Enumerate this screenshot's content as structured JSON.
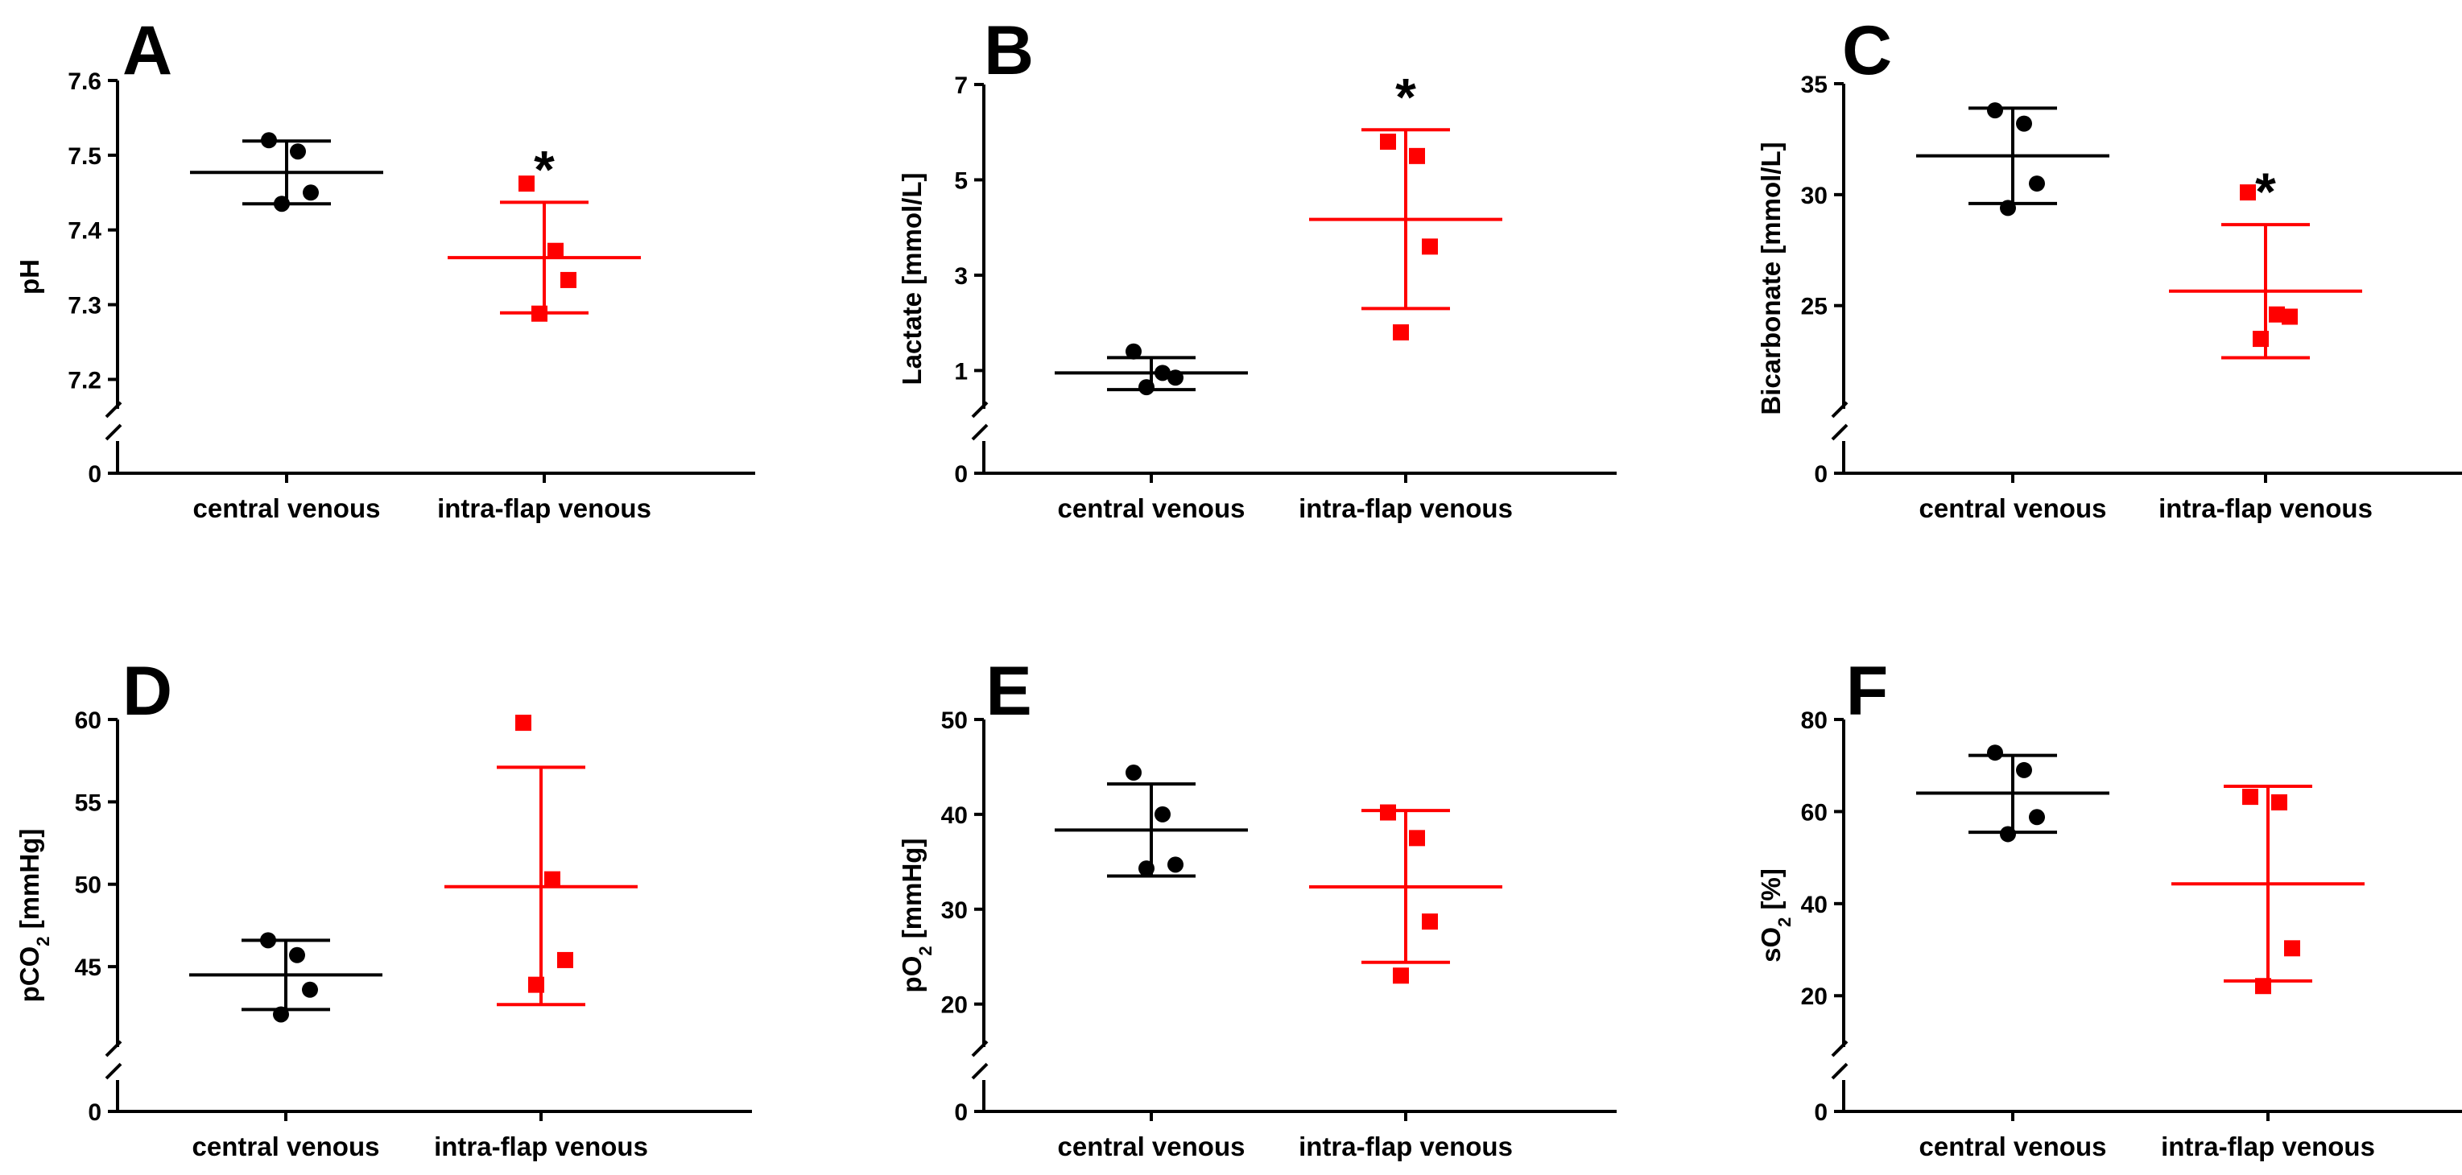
{
  "chart_data": [
    {
      "type": "scatter",
      "panel": "A",
      "title": "",
      "xlabel": "",
      "ylabel": "pH",
      "ylabel_sub": "",
      "ylabel_rest": "",
      "ylim": [
        7.18,
        7.6
      ],
      "yticks": [
        7.2,
        7.3,
        7.4,
        7.5,
        7.6
      ],
      "ytick_labels": [
        "7.2",
        "7.3",
        "7.4",
        "7.5",
        "7.6"
      ],
      "zero_label": "0",
      "categories": [
        "central venous",
        "intra-flap venous"
      ],
      "series": [
        {
          "name": "central venous",
          "color": "#000000",
          "marker": "circle",
          "values": [
            7.52,
            7.505,
            7.45,
            7.435
          ],
          "mean": 7.477,
          "sd_upper": 7.519,
          "sd_lower": 7.435,
          "significance": ""
        },
        {
          "name": "intra-flap venous",
          "color": "#ff0000",
          "marker": "square",
          "values": [
            7.462,
            7.372,
            7.333,
            7.288
          ],
          "mean": 7.363,
          "sd_upper": 7.437,
          "sd_lower": 7.289,
          "significance": "*"
        }
      ]
    },
    {
      "type": "scatter",
      "panel": "B",
      "title": "",
      "xlabel": "",
      "ylabel": "Lactate [mmol/L]",
      "ylabel_sub": "",
      "ylabel_rest": "",
      "ylim": [
        0.5,
        7
      ],
      "yticks": [
        1,
        3,
        5,
        7
      ],
      "ytick_labels": [
        "1",
        "3",
        "5",
        "7"
      ],
      "zero_label": "0",
      "categories": [
        "central venous",
        "intra-flap venous"
      ],
      "series": [
        {
          "name": "central venous",
          "color": "#000000",
          "marker": "circle",
          "values": [
            1.4,
            0.95,
            0.85,
            0.65
          ],
          "mean": 0.95,
          "sd_upper": 1.27,
          "sd_lower": 0.6,
          "significance": ""
        },
        {
          "name": "intra-flap venous",
          "color": "#ff0000",
          "marker": "square",
          "values": [
            5.8,
            5.5,
            3.6,
            1.8
          ],
          "mean": 4.17,
          "sd_upper": 6.05,
          "sd_lower": 2.3,
          "significance": "*"
        }
      ]
    },
    {
      "type": "scatter",
      "panel": "C",
      "title": "",
      "xlabel": "",
      "ylabel": "Bicarbonate [mmol/L]",
      "ylabel_sub": "",
      "ylabel_rest": "",
      "ylim": [
        21,
        35
      ],
      "yticks": [
        25,
        30,
        35
      ],
      "ytick_labels": [
        "25",
        "30",
        "35"
      ],
      "zero_label": "0",
      "categories": [
        "central venous",
        "intra-flap venous"
      ],
      "series": [
        {
          "name": "central venous",
          "color": "#000000",
          "marker": "circle",
          "values": [
            33.8,
            33.2,
            30.5,
            29.4
          ],
          "mean": 31.75,
          "sd_upper": 33.9,
          "sd_lower": 29.6,
          "significance": ""
        },
        {
          "name": "intra-flap venous",
          "color": "#ff0000",
          "marker": "square",
          "values": [
            30.1,
            24.6,
            24.5,
            23.5
          ],
          "mean": 25.65,
          "sd_upper": 28.65,
          "sd_lower": 22.65,
          "significance": "*"
        }
      ]
    },
    {
      "type": "scatter",
      "panel": "D",
      "title": "",
      "xlabel": "",
      "ylabel": "pCO",
      "ylabel_sub": "2",
      "ylabel_rest": " [mmHg]",
      "ylim": [
        41,
        60
      ],
      "yticks": [
        45,
        50,
        55,
        60
      ],
      "ytick_labels": [
        "45",
        "50",
        "55",
        "60"
      ],
      "zero_label": "0",
      "categories": [
        "central venous",
        "intra-flap venous"
      ],
      "series": [
        {
          "name": "central venous",
          "color": "#000000",
          "marker": "circle",
          "values": [
            46.6,
            45.7,
            43.6,
            42.1
          ],
          "mean": 44.5,
          "sd_upper": 46.6,
          "sd_lower": 42.4,
          "significance": ""
        },
        {
          "name": "intra-flap venous",
          "color": "#ff0000",
          "marker": "square",
          "values": [
            59.8,
            50.3,
            45.4,
            43.9
          ],
          "mean": 49.85,
          "sd_upper": 57.1,
          "sd_lower": 42.7,
          "significance": ""
        }
      ]
    },
    {
      "type": "scatter",
      "panel": "E",
      "title": "",
      "xlabel": "",
      "ylabel": "pO",
      "ylabel_sub": "2",
      "ylabel_rest": " [mmHg]",
      "ylim": [
        17,
        50
      ],
      "yticks": [
        20,
        30,
        40,
        50
      ],
      "ytick_labels": [
        "20",
        "30",
        "40",
        "50"
      ],
      "zero_label": "0",
      "categories": [
        "central venous",
        "intra-flap venous"
      ],
      "series": [
        {
          "name": "central venous",
          "color": "#000000",
          "marker": "circle",
          "values": [
            44.4,
            40.0,
            34.7,
            34.3
          ],
          "mean": 38.35,
          "sd_upper": 43.2,
          "sd_lower": 33.5,
          "significance": ""
        },
        {
          "name": "intra-flap venous",
          "color": "#ff0000",
          "marker": "square",
          "values": [
            40.2,
            37.5,
            28.7,
            23.0
          ],
          "mean": 32.35,
          "sd_upper": 40.4,
          "sd_lower": 24.4,
          "significance": ""
        }
      ]
    },
    {
      "type": "scatter",
      "panel": "F",
      "title": "",
      "xlabel": "",
      "ylabel": "sO",
      "ylabel_sub": "2",
      "ylabel_rest": " [%]",
      "ylim": [
        12,
        80
      ],
      "yticks": [
        20,
        40,
        60,
        80
      ],
      "ytick_labels": [
        "20",
        "40",
        "60",
        "80"
      ],
      "zero_label": "0",
      "categories": [
        "central venous",
        "intra-flap venous"
      ],
      "series": [
        {
          "name": "central venous",
          "color": "#000000",
          "marker": "circle",
          "values": [
            72.8,
            69.0,
            58.8,
            55.1
          ],
          "mean": 64.0,
          "sd_upper": 72.2,
          "sd_lower": 55.5,
          "significance": ""
        },
        {
          "name": "intra-flap venous",
          "color": "#ff0000",
          "marker": "square",
          "values": [
            63.2,
            62.0,
            30.3,
            22.1
          ],
          "mean": 44.3,
          "sd_upper": 65.5,
          "sd_lower": 23.2,
          "significance": ""
        }
      ]
    }
  ]
}
